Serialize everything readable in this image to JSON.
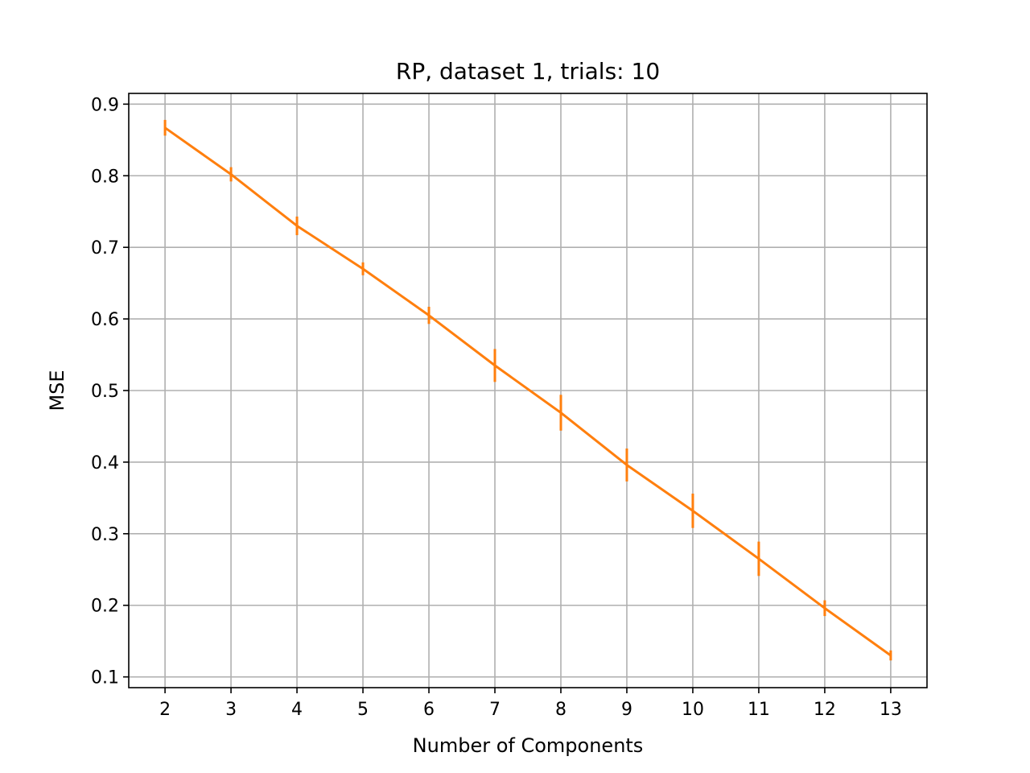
{
  "chart_data": {
    "type": "line",
    "title": "RP, dataset 1, trials: 10",
    "xlabel": "Number of Components",
    "ylabel": "MSE",
    "xlim": [
      1.45,
      13.55
    ],
    "ylim": [
      0.085,
      0.915
    ],
    "x": [
      2,
      3,
      4,
      5,
      6,
      7,
      8,
      9,
      10,
      11,
      12,
      13
    ],
    "xticks": [
      "2",
      "3",
      "4",
      "5",
      "6",
      "7",
      "8",
      "9",
      "10",
      "11",
      "12",
      "13"
    ],
    "yticks": [
      0.1,
      0.2,
      0.3,
      0.4,
      0.5,
      0.6,
      0.7,
      0.8,
      0.9
    ],
    "ytick_labels": [
      "0.1",
      "0.2",
      "0.3",
      "0.4",
      "0.5",
      "0.6",
      "0.7",
      "0.8",
      "0.9"
    ],
    "grid": true,
    "series": [
      {
        "values": [
          0.867,
          0.802,
          0.73,
          0.67,
          0.605,
          0.535,
          0.469,
          0.396,
          0.332,
          0.265,
          0.196,
          0.13
        ],
        "errors": [
          0.011,
          0.01,
          0.013,
          0.009,
          0.012,
          0.023,
          0.025,
          0.023,
          0.024,
          0.024,
          0.011,
          0.007
        ],
        "color": "#ff7f0e"
      }
    ]
  }
}
